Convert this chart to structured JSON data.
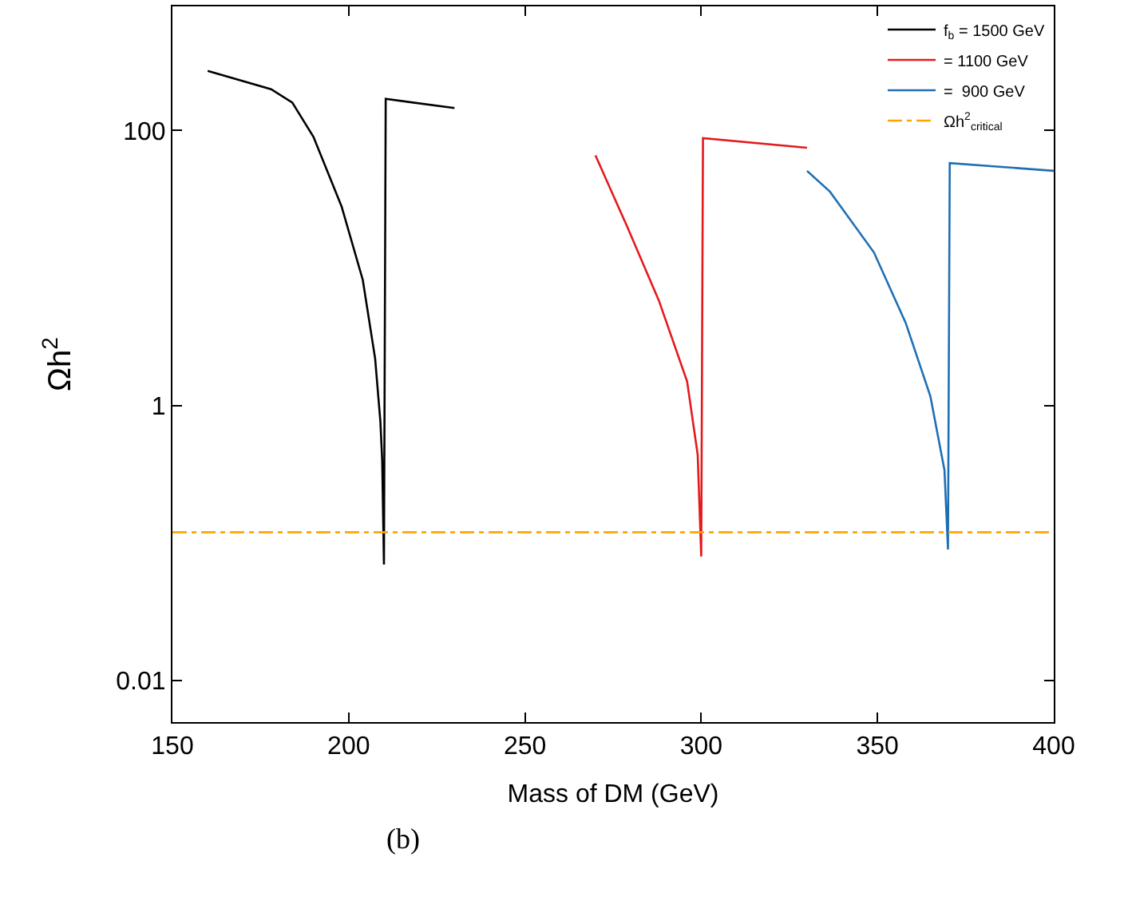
{
  "chart_data": {
    "type": "line",
    "xlabel": "Mass of DM (GeV)",
    "ylabel": "Ωh$^{2}$",
    "log": "y",
    "xlim": [
      150,
      400
    ],
    "ylim": [
      0.005,
      800
    ],
    "xticks": [
      150,
      200,
      250,
      300,
      350,
      400
    ],
    "yticks": [
      0.01,
      1,
      100
    ],
    "legend": "top right",
    "marker": "none",
    "series": [
      {
        "name": "f$_{b}$ = 1500 GeV",
        "color": "#000000",
        "x": [
          160,
          178,
          184,
          190,
          198,
          204,
          207.5,
          209,
          209.5,
          210,
          210.5,
          230
        ],
        "values": [
          272,
          200,
          160,
          90,
          28,
          8.2,
          2.2,
          0.76,
          0.4,
          0.07,
          170,
          146
        ]
      },
      {
        "name": "= 1100 GeV",
        "color": "#e41a1c",
        "x": [
          270,
          279,
          288,
          296,
          299,
          300,
          300.5,
          330
        ],
        "values": [
          66,
          20,
          5.8,
          1.5,
          0.44,
          0.08,
          88,
          75
        ]
      },
      {
        "name": "=  900 GeV",
        "color": "#1f6fb4",
        "x": [
          330,
          336.5,
          349,
          358,
          365,
          369,
          370,
          370.5,
          400
        ],
        "values": [
          51,
          36,
          13,
          4,
          1.17,
          0.34,
          0.09,
          58,
          51
        ]
      },
      {
        "name": "Ωh$^{2}$$_{critical}$",
        "color": "#ffa500",
        "line_style": "dashdot",
        "x": [
          150,
          400
        ],
        "values": [
          0.12,
          0.12
        ]
      }
    ],
    "annotations": [
      "(b)"
    ]
  }
}
